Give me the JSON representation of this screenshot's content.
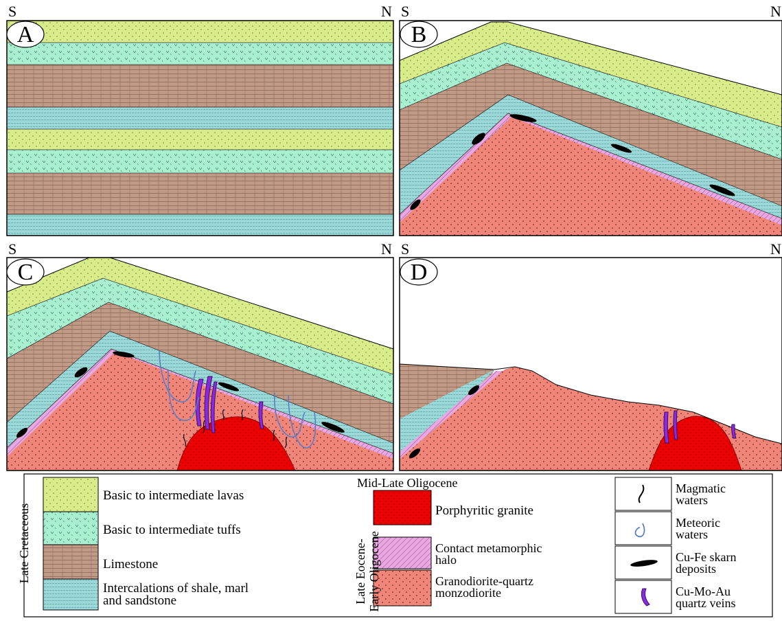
{
  "panels": {
    "a": {
      "letter": "A",
      "left": "S",
      "right": "N"
    },
    "b": {
      "letter": "B",
      "left": "S",
      "right": "N"
    },
    "c": {
      "letter": "C",
      "left": "S",
      "right": "N"
    },
    "d": {
      "letter": "D",
      "left": "S",
      "right": "N"
    }
  },
  "legend": {
    "group_late_cretaceous": "Late Cretaceous",
    "group_mid_late_oligocene": "Mid-Late Oligocene",
    "group_eocene_oligocene": "Late Eocene-\nEarly Oligocene",
    "lavas": "Basic to intermediate lavas",
    "tuffs": "Basic to intermediate tuffs",
    "limestone": "Limestone",
    "shale": "Intercalations of shale, marl\nand sandstone",
    "porphyritic": "Porphyritic granite",
    "halo": "Contact metamorphic\nhalo",
    "granodiorite": "Granodiorite-quartz\nmonzodiorite",
    "magmatic": "Magmatic\nwaters",
    "meteoric": "Meteoric\nwaters",
    "skarn": "Cu-Fe skarn\ndeposits",
    "veins": "Cu-Mo-Au\nquartz veins"
  },
  "colors": {
    "lavas": "#d9ec8a",
    "tuffs": "#a8f0d0",
    "limestone": "#c09a86",
    "shale": "#9cd8d8",
    "granodiorite": "#f0857a",
    "porphyritic": "#ee0000",
    "halo": "#e8a8e0",
    "skarn": "#000000",
    "veins": "#8a2be2",
    "meteoric": "#5a7ec8"
  }
}
